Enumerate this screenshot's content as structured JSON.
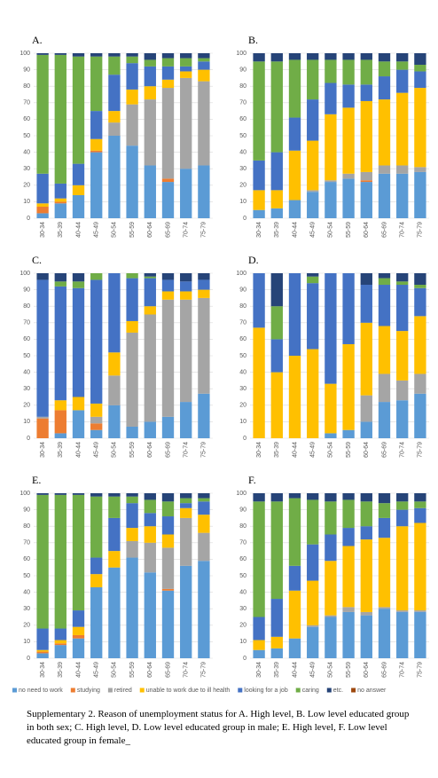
{
  "legend": [
    {
      "name": "no need to work",
      "color": "#5b9bd5"
    },
    {
      "name": "studying",
      "color": "#ed7d31"
    },
    {
      "name": "retired",
      "color": "#a5a5a5"
    },
    {
      "name": "unable to work due to ill health",
      "color": "#ffc000"
    },
    {
      "name": "looking for a job",
      "color": "#4472c4"
    },
    {
      "name": "caring",
      "color": "#70ad47"
    },
    {
      "name": "etc.",
      "color": "#264478"
    },
    {
      "name": "no answer",
      "color": "#9e480e"
    }
  ],
  "caption": "Supplementary 2. Reason of unemployment status for A. High level, B. Low level educated group in both sex; C. High level, D. Low level educated group in male; E. High level, F. Low level educated group in female_",
  "chart_data": [
    {
      "type": "stacked_bar",
      "title": "A.",
      "categories": [
        "30-34",
        "35-39",
        "40-44",
        "45-49",
        "50-54",
        "55-59",
        "60-64",
        "65-69",
        "70-74",
        "75-79"
      ],
      "ylim": [
        0,
        100
      ],
      "yticks": [
        0,
        10,
        20,
        30,
        40,
        50,
        60,
        70,
        80,
        90,
        100
      ],
      "grid": true,
      "series": [
        {
          "values": [
            3,
            9,
            14,
            40,
            50,
            44,
            32,
            22,
            30,
            32
          ]
        },
        {
          "values": [
            4,
            1,
            0,
            1,
            0,
            0,
            0,
            2,
            0,
            0
          ]
        },
        {
          "values": [
            0,
            0,
            0,
            0,
            8,
            25,
            40,
            55,
            55,
            51
          ]
        },
        {
          "values": [
            2,
            2,
            6,
            7,
            7,
            9,
            8,
            5,
            4,
            7
          ]
        },
        {
          "values": [
            18,
            9,
            13,
            17,
            22,
            16,
            12,
            8,
            3,
            5
          ]
        },
        {
          "values": [
            72,
            78,
            65,
            33,
            11,
            4,
            4,
            5,
            5,
            2
          ]
        },
        {
          "values": [
            1,
            1,
            2,
            2,
            2,
            2,
            4,
            3,
            3,
            3
          ]
        },
        {
          "values": [
            0,
            0,
            0,
            0,
            0,
            0,
            0,
            0,
            0,
            0
          ]
        }
      ]
    },
    {
      "type": "stacked_bar",
      "title": "B.",
      "categories": [
        "30-34",
        "35-39",
        "40-44",
        "45-49",
        "50-54",
        "55-59",
        "60-64",
        "65-69",
        "70-74",
        "75-79"
      ],
      "ylim": [
        0,
        100
      ],
      "yticks": [
        0,
        10,
        20,
        30,
        40,
        50,
        60,
        70,
        80,
        90,
        100
      ],
      "grid": true,
      "series": [
        {
          "values": [
            5,
            6,
            11,
            16,
            22,
            24,
            22,
            27,
            27,
            28
          ]
        },
        {
          "values": [
            0,
            0,
            0,
            0,
            0,
            0,
            1,
            0,
            0,
            0
          ]
        },
        {
          "values": [
            0,
            0,
            0,
            1,
            1,
            3,
            5,
            5,
            5,
            3
          ]
        },
        {
          "values": [
            12,
            11,
            30,
            30,
            40,
            40,
            43,
            40,
            44,
            48
          ]
        },
        {
          "values": [
            18,
            23,
            20,
            25,
            19,
            14,
            10,
            14,
            14,
            10
          ]
        },
        {
          "values": [
            60,
            55,
            35,
            24,
            14,
            15,
            15,
            9,
            5,
            4
          ]
        },
        {
          "values": [
            5,
            5,
            4,
            4,
            4,
            4,
            4,
            5,
            5,
            7
          ]
        },
        {
          "values": [
            0,
            0,
            0,
            0,
            0,
            0,
            0,
            0,
            0,
            0
          ]
        }
      ]
    },
    {
      "type": "stacked_bar",
      "title": "C.",
      "categories": [
        "30-34",
        "35-39",
        "40-44",
        "45-49",
        "50-54",
        "55-59",
        "60-64",
        "65-69",
        "70-74",
        "75-79"
      ],
      "ylim": [
        0,
        100
      ],
      "yticks": [
        0,
        10,
        20,
        30,
        40,
        50,
        60,
        70,
        80,
        90,
        100
      ],
      "grid": true,
      "series": [
        {
          "values": [
            0,
            3,
            17,
            5,
            20,
            7,
            10,
            13,
            22,
            27
          ]
        },
        {
          "values": [
            12,
            14,
            0,
            4,
            0,
            0,
            0,
            0,
            0,
            0
          ]
        },
        {
          "values": [
            1,
            0,
            0,
            4,
            18,
            57,
            65,
            71,
            62,
            58
          ]
        },
        {
          "values": [
            0,
            6,
            8,
            8,
            14,
            7,
            5,
            5,
            5,
            5
          ]
        },
        {
          "values": [
            83,
            69,
            66,
            75,
            48,
            26,
            17,
            7,
            6,
            6
          ]
        },
        {
          "values": [
            0,
            3,
            4,
            4,
            0,
            3,
            1,
            0,
            0,
            0
          ]
        },
        {
          "values": [
            4,
            5,
            5,
            0,
            0,
            0,
            2,
            4,
            5,
            4
          ]
        },
        {
          "values": [
            0,
            0,
            0,
            0,
            0,
            0,
            0,
            0,
            0,
            0
          ]
        }
      ]
    },
    {
      "type": "stacked_bar",
      "title": "D.",
      "categories": [
        "30-34",
        "35-39",
        "40-44",
        "45-49",
        "50-54",
        "55-59",
        "60-64",
        "65-69",
        "70-74",
        "75-79"
      ],
      "ylim": [
        0,
        100
      ],
      "yticks": [
        0,
        10,
        20,
        30,
        40,
        50,
        60,
        70,
        80,
        90,
        100
      ],
      "grid": true,
      "series": [
        {
          "values": [
            0,
            0,
            0,
            0,
            3,
            5,
            10,
            22,
            23,
            27
          ]
        },
        {
          "values": [
            0,
            0,
            0,
            0,
            0,
            0,
            0,
            0,
            0,
            0
          ]
        },
        {
          "values": [
            0,
            0,
            0,
            0,
            0,
            0,
            16,
            17,
            12,
            12
          ]
        },
        {
          "values": [
            67,
            40,
            50,
            54,
            30,
            52,
            44,
            29,
            30,
            35
          ]
        },
        {
          "values": [
            33,
            20,
            50,
            40,
            67,
            43,
            23,
            25,
            28,
            17
          ]
        },
        {
          "values": [
            0,
            20,
            0,
            4,
            0,
            0,
            0,
            4,
            2,
            2
          ]
        },
        {
          "values": [
            0,
            20,
            0,
            2,
            0,
            0,
            7,
            3,
            5,
            7
          ]
        },
        {
          "values": [
            0,
            0,
            0,
            0,
            0,
            0,
            0,
            0,
            0,
            0
          ]
        }
      ]
    },
    {
      "type": "stacked_bar",
      "title": "E.",
      "categories": [
        "30-34",
        "35-39",
        "40-44",
        "45-49",
        "50-54",
        "55-59",
        "60-64",
        "65-69",
        "70-74",
        "75-79"
      ],
      "ylim": [
        0,
        100
      ],
      "yticks": [
        0,
        10,
        20,
        30,
        40,
        50,
        60,
        70,
        80,
        90,
        100
      ],
      "grid": true,
      "series": [
        {
          "values": [
            3,
            8,
            12,
            43,
            55,
            61,
            52,
            41,
            56,
            59
          ]
        },
        {
          "values": [
            1,
            1,
            2,
            0,
            0,
            0,
            0,
            1,
            0,
            0
          ]
        },
        {
          "values": [
            0,
            0,
            0,
            0,
            0,
            10,
            18,
            25,
            29,
            17
          ]
        },
        {
          "values": [
            1,
            2,
            5,
            8,
            10,
            8,
            10,
            8,
            6,
            11
          ]
        },
        {
          "values": [
            13,
            7,
            10,
            10,
            20,
            15,
            8,
            11,
            3,
            8
          ]
        },
        {
          "values": [
            81,
            81,
            70,
            37,
            13,
            4,
            8,
            9,
            3,
            2
          ]
        },
        {
          "values": [
            1,
            1,
            1,
            2,
            2,
            2,
            4,
            5,
            3,
            3
          ]
        },
        {
          "values": [
            0,
            0,
            0,
            0,
            0,
            0,
            0,
            0,
            0,
            0
          ]
        }
      ]
    },
    {
      "type": "stacked_bar",
      "title": "F.",
      "categories": [
        "30-34",
        "35-39",
        "40-44",
        "45-49",
        "50-54",
        "55-59",
        "60-64",
        "65-69",
        "70-74",
        "75-79"
      ],
      "ylim": [
        0,
        100
      ],
      "yticks": [
        0,
        10,
        20,
        30,
        40,
        50,
        60,
        70,
        80,
        90,
        100
      ],
      "grid": true,
      "series": [
        {
          "values": [
            5,
            6,
            12,
            19,
            25,
            28,
            26,
            30,
            28,
            28
          ]
        },
        {
          "values": [
            0,
            0,
            0,
            0,
            0,
            0,
            0,
            0,
            0,
            0
          ]
        },
        {
          "values": [
            0,
            0,
            0,
            1,
            1,
            3,
            2,
            1,
            1,
            1
          ]
        },
        {
          "values": [
            6,
            7,
            29,
            27,
            33,
            37,
            44,
            42,
            51,
            53
          ]
        },
        {
          "values": [
            14,
            23,
            15,
            22,
            16,
            11,
            8,
            12,
            10,
            9
          ]
        },
        {
          "values": [
            70,
            59,
            41,
            27,
            20,
            17,
            15,
            9,
            5,
            4
          ]
        },
        {
          "values": [
            5,
            5,
            3,
            4,
            5,
            4,
            5,
            6,
            5,
            5
          ]
        },
        {
          "values": [
            0,
            0,
            0,
            0,
            0,
            0,
            0,
            0,
            0,
            0
          ]
        }
      ]
    }
  ]
}
